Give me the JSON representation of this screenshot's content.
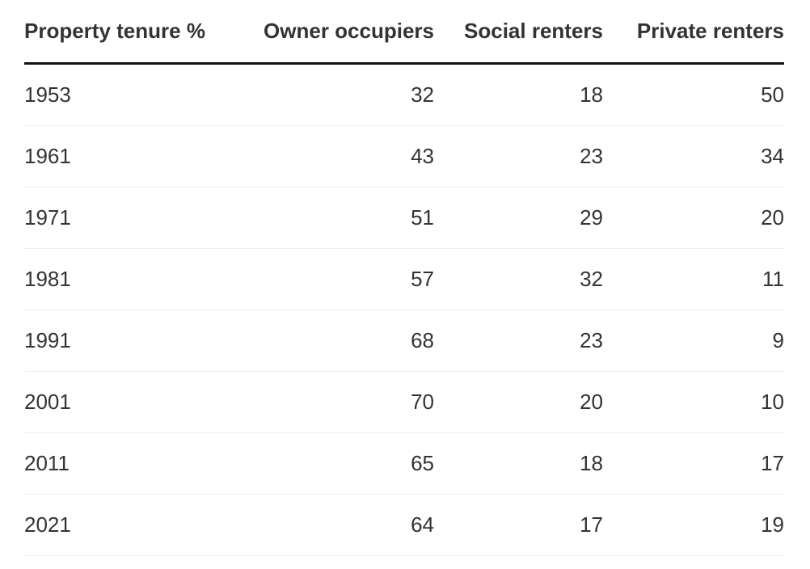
{
  "table": {
    "header": [
      "Property tenure %",
      "Owner occupiers",
      "Social renters",
      "Private renters"
    ],
    "rows": [
      [
        1953,
        32,
        18,
        50
      ],
      [
        1961,
        43,
        23,
        34
      ],
      [
        1971,
        51,
        29,
        20
      ],
      [
        1981,
        57,
        32,
        11
      ],
      [
        1991,
        68,
        23,
        9
      ],
      [
        2001,
        70,
        20,
        10
      ],
      [
        2011,
        65,
        18,
        17
      ],
      [
        2021,
        64,
        17,
        19
      ]
    ]
  }
}
